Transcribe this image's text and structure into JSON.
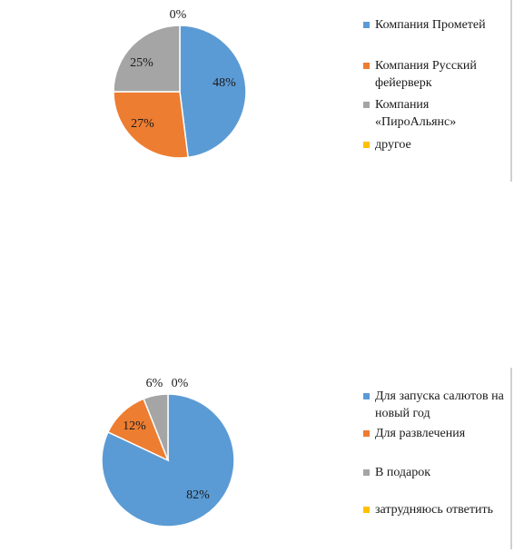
{
  "chart_data": [
    {
      "type": "pie",
      "slices": [
        {
          "label": "Компания Прометей",
          "value": 48,
          "label_text": "48%",
          "color": "#5B9BD5"
        },
        {
          "label": "Компания Русский фейерверк",
          "value": 27,
          "label_text": "27%",
          "color": "#ED7D31"
        },
        {
          "label": "Компания «ПироАльянс»",
          "value": 25,
          "label_text": "25%",
          "color": "#A5A5A5"
        },
        {
          "label": "другое",
          "value": 0,
          "label_text": "0%",
          "color": "#FFC000"
        }
      ],
      "legend": {
        "position": "right"
      }
    },
    {
      "type": "pie",
      "slices": [
        {
          "label": "Для запуска салютов на новый год",
          "value": 82,
          "label_text": "82%",
          "color": "#5B9BD5"
        },
        {
          "label": "Для развлечения",
          "value": 12,
          "label_text": "12%",
          "color": "#ED7D31"
        },
        {
          "label": "В подарок",
          "value": 6,
          "label_text": "6%",
          "color": "#A5A5A5"
        },
        {
          "label": "затрудняюсь ответить",
          "value": 0,
          "label_text": "0%",
          "color": "#FFC000"
        }
      ],
      "legend": {
        "position": "right"
      }
    }
  ]
}
